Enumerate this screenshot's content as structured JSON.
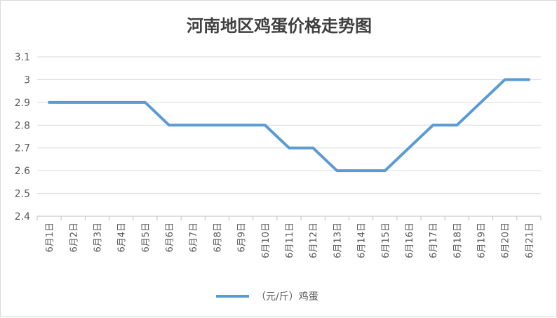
{
  "chart_data": {
    "type": "line",
    "title": "河南地区鸡蛋价格走势图",
    "categories": [
      "6月1日",
      "6月2日",
      "6月3日",
      "6月4日",
      "6月5日",
      "6月6日",
      "6月7日",
      "6月8日",
      "6月9日",
      "6月10日",
      "6月11日",
      "6月12日",
      "6月13日",
      "6月14日",
      "6月15日",
      "6月16日",
      "6月17日",
      "6月18日",
      "6月19日",
      "6月20日",
      "6月21日"
    ],
    "series": [
      {
        "name": "（元/斤）鸡蛋",
        "color": "#5b9bd5",
        "values": [
          2.9,
          2.9,
          2.9,
          2.9,
          2.9,
          2.8,
          2.8,
          2.8,
          2.8,
          2.8,
          2.7,
          2.7,
          2.6,
          2.6,
          2.6,
          2.7,
          2.8,
          2.8,
          2.9,
          3.0,
          3.0
        ]
      }
    ],
    "ylim": [
      2.4,
      3.1
    ],
    "yticks": [
      "2.4",
      "2.5",
      "2.6",
      "2.7",
      "2.8",
      "2.9",
      "3",
      "3.1"
    ],
    "xlabel": "",
    "ylabel": "",
    "grid": true,
    "legend": "bottom"
  }
}
